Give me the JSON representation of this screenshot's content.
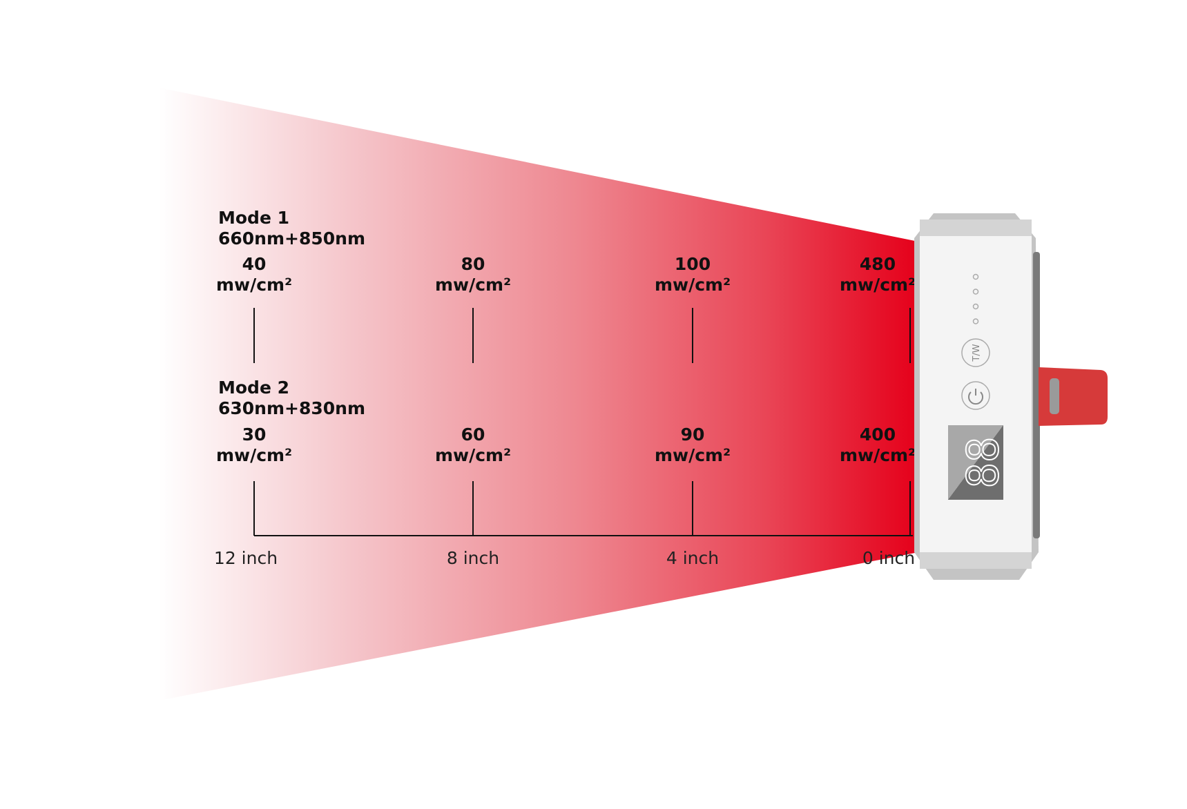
{
  "colors": {
    "beam_start": "#ffffff",
    "beam_end": "#e5001a",
    "device_body": "#c4c4c4",
    "device_face": "#f4f4f4",
    "strap": "#d63a3a"
  },
  "chart_data": {
    "type": "table",
    "x_unit": "inch",
    "distances": [
      "12 inch",
      "8 inch",
      "4 inch",
      "0 inch"
    ],
    "unit_label": "mw/cm²",
    "series": [
      {
        "name": "Mode 1",
        "subtitle": "660nm+850nm",
        "values": [
          40,
          80,
          100,
          480
        ]
      },
      {
        "name": "Mode 2",
        "subtitle": "630nm+830nm",
        "values": [
          30,
          60,
          90,
          400
        ]
      }
    ]
  },
  "device": {
    "button_mode_label": "T/W",
    "display_digits": "88",
    "indicator_count": 4
  }
}
